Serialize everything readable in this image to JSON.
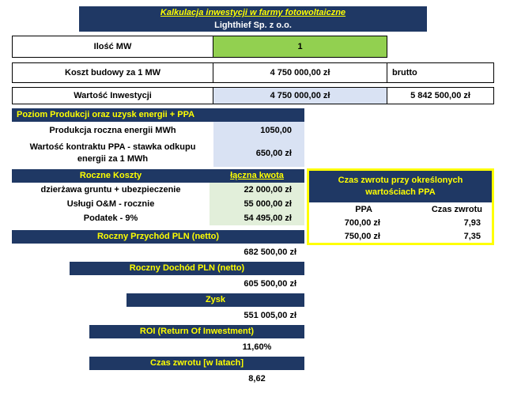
{
  "report": {
    "title": "Kalkulacja inwestycji w farmy fotowoltaiczne",
    "company": "Lighthief Sp. z o.o."
  },
  "top_table": {
    "rows": [
      {
        "label": "Ilość MW",
        "value": "1",
        "extra": ""
      },
      {
        "label": "Koszt budowy za 1 MW",
        "value": "4 750 000,00 zł",
        "extra": "brutto"
      },
      {
        "label": "Wartość Inwestycji",
        "value": "4 750 000,00 zł",
        "extra": "5 842 500,00 zł"
      }
    ]
  },
  "production": {
    "header": "Poziom Produkcji oraz uzysk energii + PPA",
    "rows": [
      {
        "label": "Produkcja roczna energii MWh",
        "value": "1050,00"
      },
      {
        "label": "Wartość kontraktu PPA - stawka odkupu energii za 1 MWh",
        "value": "650,00 zł"
      }
    ]
  },
  "costs": {
    "header": "Roczne Koszty",
    "column_header": "łączna kwota",
    "rows": [
      {
        "label": "dzierżawa gruntu + ubezpieczenie",
        "value": "22 000,00 zł"
      },
      {
        "label": "Usługi O&M - rocznie",
        "value": "55 000,00 zł"
      },
      {
        "label": "Podatek - 9%",
        "value": "54 495,00 zł"
      }
    ]
  },
  "ppa_box": {
    "header": "Czas zwrotu przy określonych wartościach PPA",
    "col1": "PPA",
    "col2": "Czas zwrotu",
    "rows": [
      {
        "ppa": "700,00 zł",
        "czas": "7,93"
      },
      {
        "ppa": "750,00 zł",
        "czas": "7,35"
      }
    ]
  },
  "summary": [
    {
      "header": "Roczny Przychód PLN (netto)",
      "value": "682 500,00 zł"
    },
    {
      "header": "Roczny Dochód PLN (netto)",
      "value": "605 500,00 zł"
    },
    {
      "header": "Zysk",
      "value": "551 005,00 zł"
    },
    {
      "header": "ROI (Return Of Inwestment)",
      "value": "11,60%"
    },
    {
      "header": "Czas zwrotu [w latach]",
      "value": "8,62"
    }
  ],
  "colors": {
    "navy": "#1F3864",
    "header_yellow": "#FFFF00",
    "input_green": "#92D050",
    "light_blue": "#D9E2F3",
    "light_green": "#E2EFDA"
  }
}
